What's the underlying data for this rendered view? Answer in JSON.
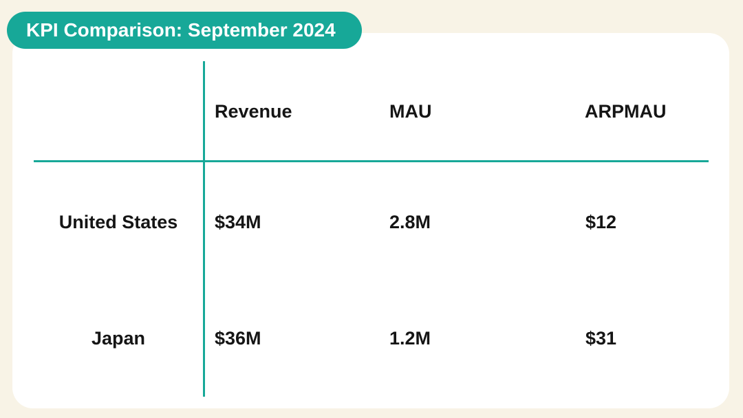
{
  "chart_data": {
    "type": "table",
    "title": "KPI Comparison: September 2024",
    "columns": [
      "",
      "Revenue",
      "MAU",
      "ARPMAU"
    ],
    "rows": [
      {
        "label": "United States",
        "values": [
          "$34M",
          "2.8M",
          "$12"
        ]
      },
      {
        "label": "Japan",
        "values": [
          "$36M",
          "1.2M",
          "$31"
        ]
      }
    ],
    "numeric_values": {
      "United States": {
        "Revenue": 34,
        "MAU": 2.8,
        "ARPMAU": 12
      },
      "Japan": {
        "Revenue": 36,
        "MAU": 1.2,
        "ARPMAU": 31
      }
    }
  },
  "colors": {
    "background": "#f8f3e6",
    "card": "#ffffff",
    "accent": "#17a898",
    "text": "#151515"
  }
}
